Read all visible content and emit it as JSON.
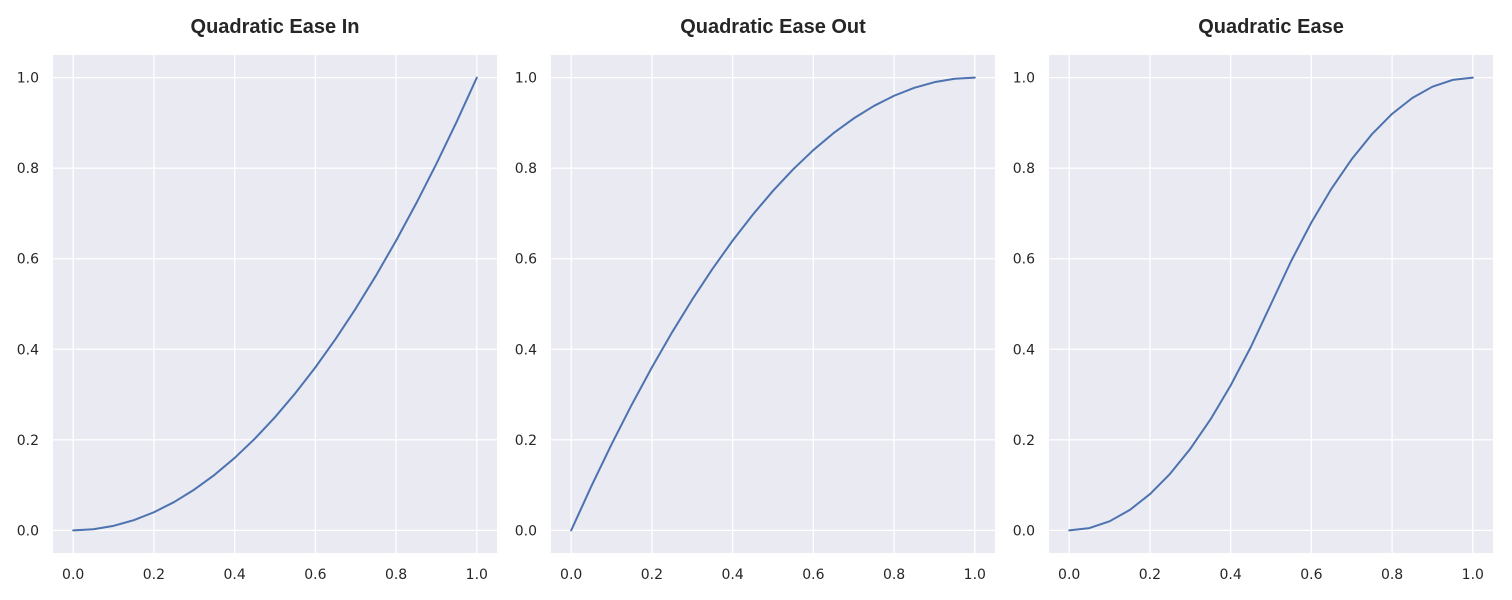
{
  "chart_data": [
    {
      "type": "line",
      "title": "Quadratic Ease In",
      "xlabel": "",
      "ylabel": "",
      "xlim": [
        0,
        1
      ],
      "ylim": [
        0,
        1
      ],
      "x_ticks": [
        "0.0",
        "0.2",
        "0.4",
        "0.6",
        "0.8",
        "1.0"
      ],
      "y_ticks": [
        "0.0",
        "0.2",
        "0.4",
        "0.6",
        "0.8",
        "1.0"
      ],
      "grid": true,
      "x": [
        0.0,
        0.05,
        0.1,
        0.15,
        0.2,
        0.25,
        0.3,
        0.35,
        0.4,
        0.45,
        0.5,
        0.55,
        0.6,
        0.65,
        0.7,
        0.75,
        0.8,
        0.85,
        0.9,
        0.95,
        1.0
      ],
      "series": [
        {
          "values": [
            0.0,
            0.0025,
            0.01,
            0.0225,
            0.04,
            0.0625,
            0.09,
            0.1225,
            0.16,
            0.2025,
            0.25,
            0.3025,
            0.36,
            0.4225,
            0.49,
            0.5625,
            0.64,
            0.7225,
            0.81,
            0.9025,
            1.0
          ]
        }
      ]
    },
    {
      "type": "line",
      "title": "Quadratic Ease Out",
      "xlabel": "",
      "ylabel": "",
      "xlim": [
        0,
        1
      ],
      "ylim": [
        0,
        1
      ],
      "x_ticks": [
        "0.0",
        "0.2",
        "0.4",
        "0.6",
        "0.8",
        "1.0"
      ],
      "y_ticks": [
        "0.0",
        "0.2",
        "0.4",
        "0.6",
        "0.8",
        "1.0"
      ],
      "grid": true,
      "x": [
        0.0,
        0.05,
        0.1,
        0.15,
        0.2,
        0.25,
        0.3,
        0.35,
        0.4,
        0.45,
        0.5,
        0.55,
        0.6,
        0.65,
        0.7,
        0.75,
        0.8,
        0.85,
        0.9,
        0.95,
        1.0
      ],
      "series": [
        {
          "values": [
            0.0,
            0.0975,
            0.19,
            0.2775,
            0.36,
            0.4375,
            0.51,
            0.5775,
            0.64,
            0.6975,
            0.75,
            0.7975,
            0.84,
            0.8775,
            0.91,
            0.9375,
            0.96,
            0.9775,
            0.99,
            0.9975,
            1.0
          ]
        }
      ]
    },
    {
      "type": "line",
      "title": "Quadratic Ease",
      "xlabel": "",
      "ylabel": "",
      "xlim": [
        0,
        1
      ],
      "ylim": [
        0,
        1
      ],
      "x_ticks": [
        "0.0",
        "0.2",
        "0.4",
        "0.6",
        "0.8",
        "1.0"
      ],
      "y_ticks": [
        "0.0",
        "0.2",
        "0.4",
        "0.6",
        "0.8",
        "1.0"
      ],
      "grid": true,
      "x": [
        0.0,
        0.05,
        0.1,
        0.15,
        0.2,
        0.25,
        0.3,
        0.35,
        0.4,
        0.45,
        0.5,
        0.55,
        0.6,
        0.65,
        0.7,
        0.75,
        0.8,
        0.85,
        0.9,
        0.95,
        1.0
      ],
      "series": [
        {
          "values": [
            0.0,
            0.005,
            0.02,
            0.045,
            0.08,
            0.125,
            0.18,
            0.245,
            0.32,
            0.405,
            0.5,
            0.595,
            0.68,
            0.755,
            0.82,
            0.875,
            0.92,
            0.955,
            0.98,
            0.995,
            1.0
          ]
        }
      ]
    }
  ],
  "colors": {
    "line": "#4c72b0",
    "axes_bg": "#eaeaf2",
    "grid": "#ffffff",
    "text": "#262626"
  }
}
